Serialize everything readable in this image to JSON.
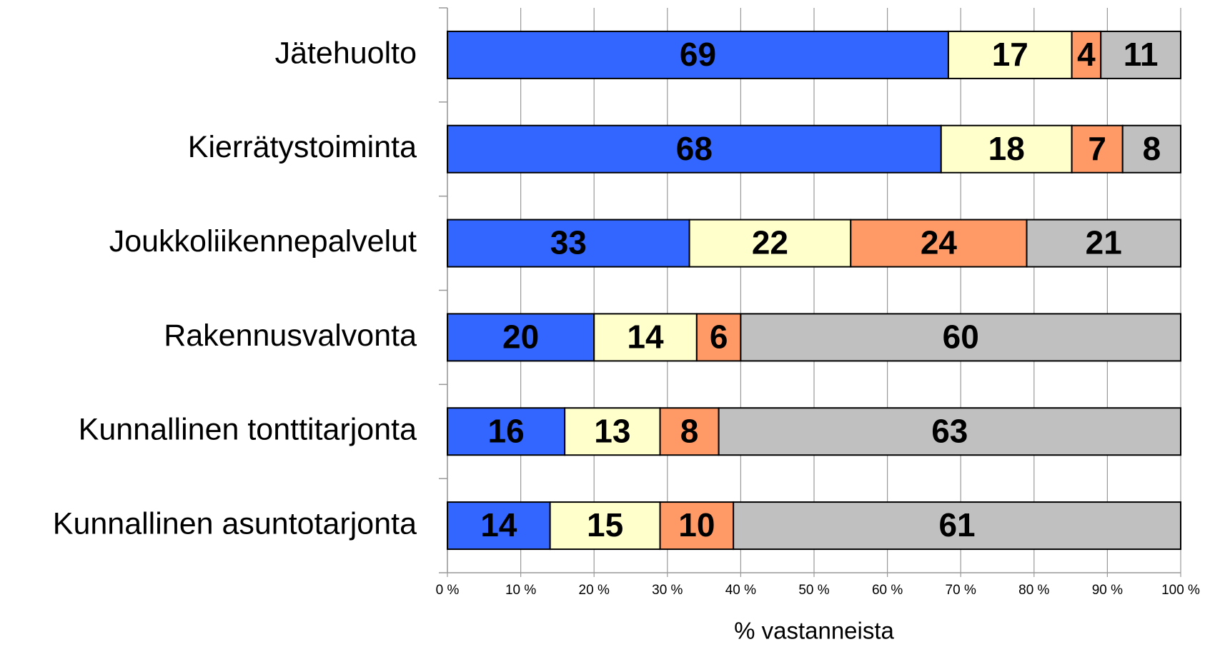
{
  "chart_data": {
    "type": "bar",
    "orientation": "horizontal",
    "stacked": "percent",
    "x_label": "% vastanneista",
    "categories": [
      "Jätehuolto",
      "Kierrätystoiminta",
      "Joukkoliikennepalvelut",
      "Rakennusvalvonta",
      "Kunnallinen tonttitarjonta",
      "Kunnallinen asuntotarjonta"
    ],
    "series": [
      {
        "color": "#3366ff",
        "values": [
          69,
          68,
          33,
          20,
          16,
          14
        ]
      },
      {
        "color": "#ffffcc",
        "values": [
          17,
          18,
          22,
          14,
          13,
          15
        ]
      },
      {
        "color": "#ff9966",
        "values": [
          4,
          7,
          24,
          6,
          8,
          10
        ]
      },
      {
        "color": "#c0c0c0",
        "values": [
          11,
          8,
          21,
          60,
          63,
          61
        ]
      }
    ],
    "xlim": [
      0,
      100
    ],
    "xticks": [
      {
        "value": 0,
        "label": "0 %"
      },
      {
        "value": 10,
        "label": "10 %"
      },
      {
        "value": 20,
        "label": "20 %"
      },
      {
        "value": 30,
        "label": "30 %"
      },
      {
        "value": 40,
        "label": "40 %"
      },
      {
        "value": 50,
        "label": "50 %"
      },
      {
        "value": 60,
        "label": "60 %"
      },
      {
        "value": 70,
        "label": "70 %"
      },
      {
        "value": 80,
        "label": "80 %"
      },
      {
        "value": 90,
        "label": "90 %"
      },
      {
        "value": 100,
        "label": "100 %"
      }
    ],
    "grid": true
  }
}
